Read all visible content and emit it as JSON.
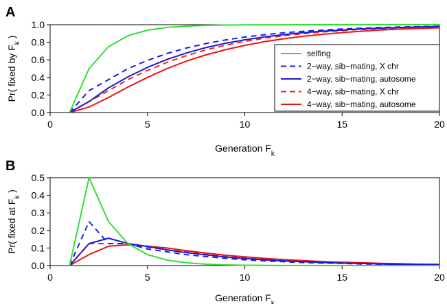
{
  "chart_data": [
    {
      "type": "line",
      "panel_label": "A",
      "xlabel": "Generation F",
      "xlabel_sub": "k",
      "ylabel": "Pr( fixed by F",
      "ylabel_sub": "k",
      "ylabel_end": " )",
      "xlim": [
        0,
        20
      ],
      "ylim": [
        0,
        1
      ],
      "x_ticks": [
        "0",
        "5",
        "10",
        "15",
        "20"
      ],
      "y_ticks": [
        "0.0",
        "0.2",
        "0.4",
        "0.6",
        "0.8",
        "1.0"
      ],
      "y_tick_values": [
        0,
        0.2,
        0.4,
        0.6,
        0.8,
        1.0
      ],
      "x_tick_values": [
        0,
        5,
        10,
        15,
        20
      ],
      "legend_position": "center-right",
      "x": [
        1,
        2,
        3,
        4,
        5,
        6,
        7,
        8,
        9,
        10,
        11,
        12,
        13,
        14,
        15,
        16,
        17,
        18,
        19,
        20
      ],
      "series": [
        {
          "name": "selfing",
          "color": "#33dd33",
          "dash": "solid",
          "values": [
            0,
            0.5,
            0.75,
            0.875,
            0.9375,
            0.9688,
            0.9844,
            0.9922,
            0.9961,
            0.998,
            0.999,
            0.9995,
            0.9998,
            0.9999,
            1,
            1,
            1,
            1,
            1,
            1
          ]
        },
        {
          "name": "2−way, sib−mating, X chr",
          "color": "#1a1aee",
          "dash": "dashed",
          "values": [
            0,
            0.25,
            0.375,
            0.5,
            0.594,
            0.672,
            0.734,
            0.785,
            0.826,
            0.859,
            0.886,
            0.908,
            0.925,
            0.939,
            0.951,
            0.96,
            0.968,
            0.974,
            0.979,
            0.983
          ]
        },
        {
          "name": "2−way, sib−mating, autosome",
          "color": "#1a1ad0",
          "dash": "solid",
          "values": [
            0,
            0.125,
            0.281,
            0.406,
            0.515,
            0.604,
            0.678,
            0.739,
            0.788,
            0.828,
            0.861,
            0.887,
            0.909,
            0.926,
            0.94,
            0.952,
            0.961,
            0.968,
            0.974,
            0.979
          ]
        },
        {
          "name": "4−way, sib−mating, X chr",
          "color": "#ee2222",
          "dash": "dashed",
          "values": [
            0,
            0.125,
            0.25,
            0.375,
            0.48,
            0.57,
            0.648,
            0.713,
            0.766,
            0.81,
            0.845,
            0.874,
            0.898,
            0.917,
            0.933,
            0.946,
            0.956,
            0.964,
            0.971,
            0.977
          ]
        },
        {
          "name": "4−way, sib−mating, autosome",
          "color": "#ee1111",
          "dash": "solid",
          "values": [
            0,
            0.0625,
            0.172,
            0.29,
            0.4,
            0.5,
            0.585,
            0.656,
            0.715,
            0.765,
            0.806,
            0.84,
            0.868,
            0.891,
            0.91,
            0.926,
            0.939,
            0.95,
            0.958,
            0.965
          ]
        }
      ]
    },
    {
      "type": "line",
      "panel_label": "B",
      "xlabel": "Generation F",
      "xlabel_sub": "k",
      "ylabel": "Pr( fixed at F",
      "ylabel_sub": "k",
      "ylabel_end": " )",
      "xlim": [
        0,
        20
      ],
      "ylim": [
        0,
        0.5
      ],
      "x_ticks": [
        "0",
        "5",
        "10",
        "15",
        "20"
      ],
      "y_ticks": [
        "0.0",
        "0.1",
        "0.2",
        "0.3",
        "0.4",
        "0.5"
      ],
      "y_tick_values": [
        0,
        0.1,
        0.2,
        0.3,
        0.4,
        0.5
      ],
      "x_tick_values": [
        0,
        5,
        10,
        15,
        20
      ],
      "x": [
        1,
        2,
        3,
        4,
        5,
        6,
        7,
        8,
        9,
        10,
        11,
        12,
        13,
        14,
        15,
        16,
        17,
        18,
        19,
        20
      ],
      "series": [
        {
          "name": "selfing",
          "color": "#33dd33",
          "dash": "solid",
          "values": [
            0,
            0.5,
            0.25,
            0.125,
            0.0625,
            0.031,
            0.016,
            0.008,
            0.004,
            0.002,
            0.001,
            0.0005,
            0.0002,
            0.0001,
            0,
            0,
            0,
            0,
            0,
            0
          ]
        },
        {
          "name": "2−way, sib−mating, X chr",
          "color": "#1a1aee",
          "dash": "dashed",
          "values": [
            0,
            0.25,
            0.125,
            0.125,
            0.094,
            0.078,
            0.062,
            0.051,
            0.041,
            0.033,
            0.027,
            0.022,
            0.017,
            0.014,
            0.012,
            0.009,
            0.008,
            0.006,
            0.005,
            0.004
          ]
        },
        {
          "name": "2−way, sib−mating, autosome",
          "color": "#1a1ad0",
          "dash": "solid",
          "values": [
            0,
            0.125,
            0.156,
            0.125,
            0.109,
            0.089,
            0.074,
            0.061,
            0.049,
            0.04,
            0.033,
            0.026,
            0.022,
            0.017,
            0.014,
            0.012,
            0.009,
            0.007,
            0.006,
            0.005
          ]
        },
        {
          "name": "4−way, sib−mating, X chr",
          "color": "#ee2222",
          "dash": "dashed",
          "values": [
            0,
            0.125,
            0.125,
            0.125,
            0.105,
            0.09,
            0.078,
            0.065,
            0.053,
            0.044,
            0.035,
            0.029,
            0.024,
            0.019,
            0.016,
            0.013,
            0.01,
            0.008,
            0.007,
            0.006
          ]
        },
        {
          "name": "4−way, sib−mating, autosome",
          "color": "#ee1111",
          "dash": "solid",
          "values": [
            0,
            0.0625,
            0.11,
            0.118,
            0.11,
            0.1,
            0.085,
            0.071,
            0.059,
            0.05,
            0.041,
            0.034,
            0.028,
            0.023,
            0.019,
            0.016,
            0.013,
            0.011,
            0.008,
            0.007
          ]
        }
      ]
    }
  ]
}
